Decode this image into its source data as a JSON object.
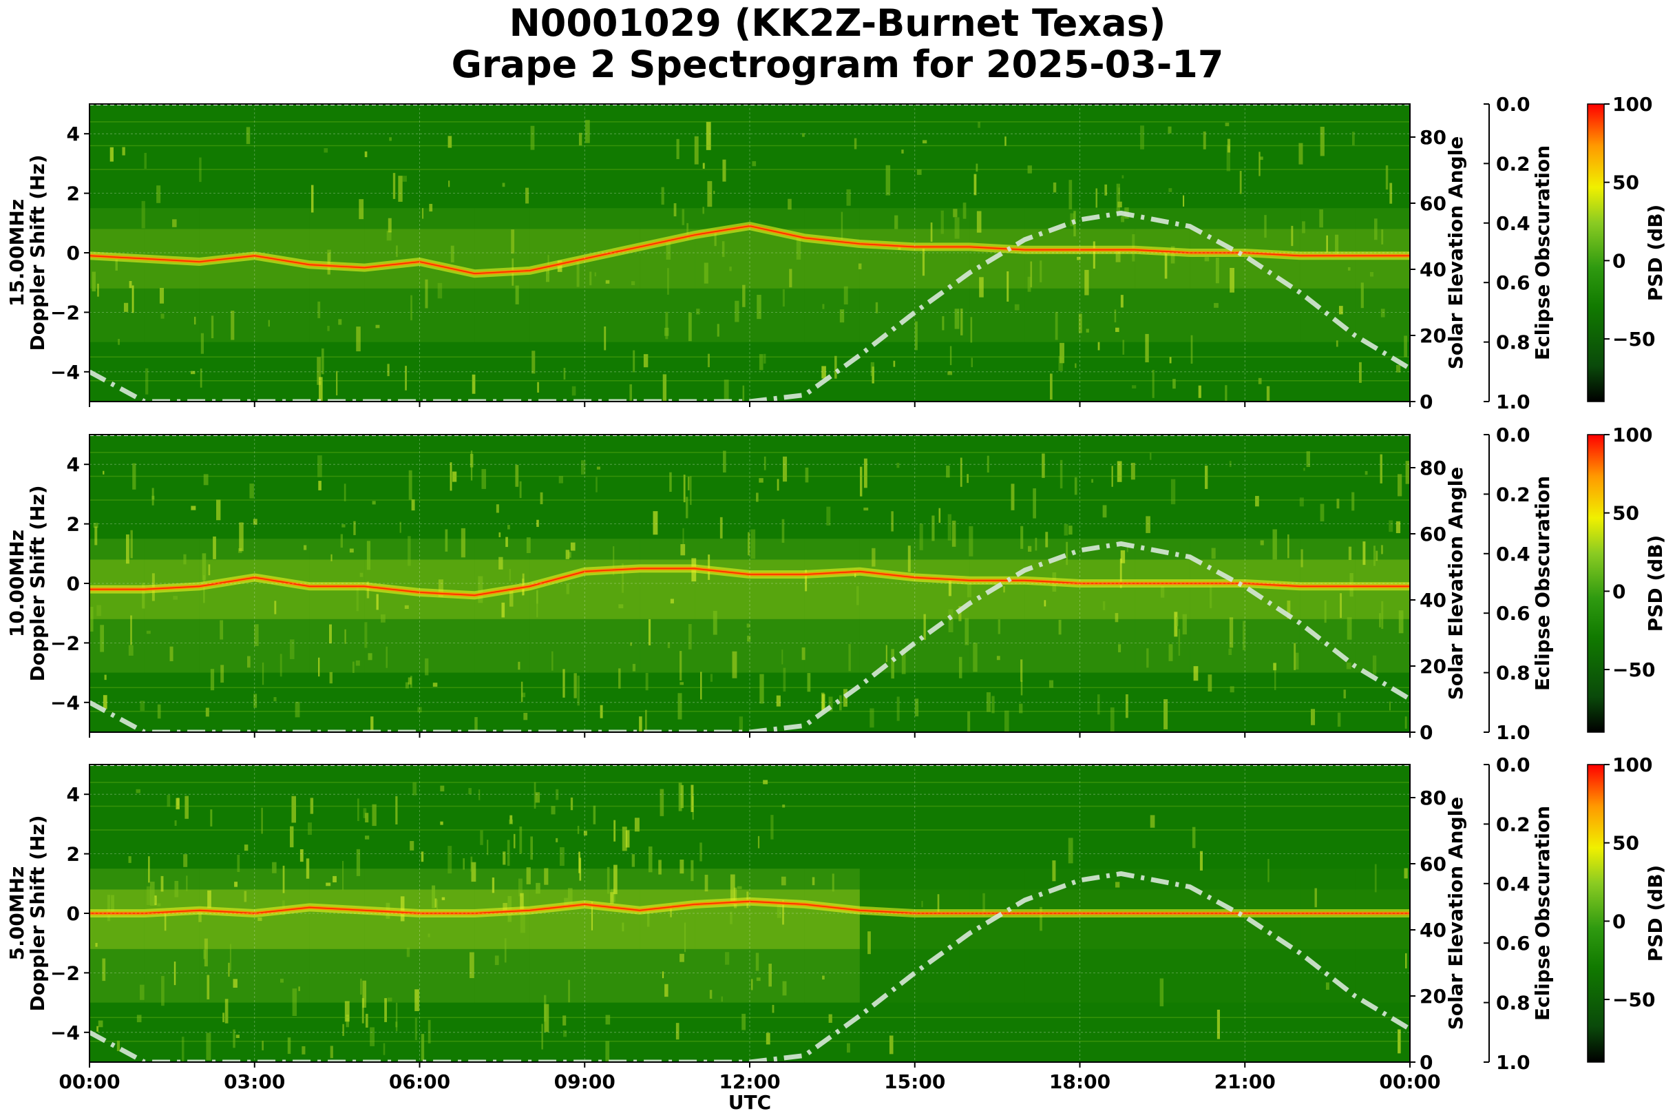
{
  "figure": {
    "title_line1": "N0001029 (KK2Z-Burnet Texas)",
    "title_line2": "Grape 2 Spectrogram for 2025-03-17"
  },
  "axes": {
    "x_label": "UTC",
    "x_ticks": [
      "00:00",
      "03:00",
      "06:00",
      "09:00",
      "12:00",
      "15:00",
      "18:00",
      "21:00",
      "00:00"
    ],
    "y_label": "Doppler Shift (Hz)",
    "y_ticks": [
      "4",
      "2",
      "0",
      "−2",
      "−4"
    ],
    "y_range": [
      -5,
      5
    ],
    "elev_label": "Solar Elevation Angle",
    "elev_ticks": [
      "0",
      "20",
      "40",
      "60",
      "80"
    ],
    "elev_range": [
      0,
      90
    ],
    "eclipse_label": "Eclipse Obscuration",
    "eclipse_ticks": [
      "0.0",
      "0.2",
      "0.4",
      "0.6",
      "0.8",
      "1.0"
    ],
    "psd_label": "PSD (dB)",
    "psd_ticks": [
      "100",
      "50",
      "0",
      "−50"
    ],
    "psd_range": [
      -90,
      100
    ]
  },
  "colors": {
    "background_green": "#117a00",
    "signal_yellow": "#e6f020",
    "signal_orange": "#ff8800",
    "signal_red": "#ff2200",
    "elevation_curve": "#d8e8d8",
    "colorbar": [
      "#000000",
      "#0a5a0a",
      "#117a00",
      "#44aa11",
      "#aad622",
      "#ffee00",
      "#ff8800",
      "#ff0000"
    ]
  },
  "chart_data": {
    "type": "heatmap",
    "panels": [
      {
        "frequency_label": "15.00MHz",
        "doppler_trace_hz": {
          "x": [
            "00:00",
            "01:00",
            "02:00",
            "03:00",
            "04:00",
            "05:00",
            "06:00",
            "07:00",
            "08:00",
            "09:00",
            "10:00",
            "11:00",
            "12:00",
            "13:00",
            "14:00",
            "15:00",
            "16:00",
            "17:00",
            "18:00",
            "19:00",
            "20:00",
            "21:00",
            "22:00",
            "23:00",
            "00:00"
          ],
          "y": [
            -0.1,
            -0.2,
            -0.3,
            -0.1,
            -0.4,
            -0.5,
            -0.3,
            -0.7,
            -0.6,
            -0.2,
            0.2,
            0.6,
            0.9,
            0.5,
            0.3,
            0.2,
            0.2,
            0.1,
            0.1,
            0.1,
            0.0,
            0.0,
            -0.1,
            -0.1,
            -0.1
          ]
        },
        "solar_elevation_deg": {
          "x": [
            "00:00",
            "01:00",
            "02:00",
            "03:00",
            "04:00",
            "05:00",
            "06:00",
            "07:00",
            "08:00",
            "09:00",
            "10:00",
            "11:00",
            "12:00",
            "13:00",
            "14:00",
            "15:00",
            "16:00",
            "17:00",
            "18:00",
            "18:45",
            "20:00",
            "21:00",
            "22:00",
            "23:00",
            "00:00"
          ],
          "y": [
            9,
            0,
            0,
            0,
            0,
            0,
            0,
            0,
            0,
            0,
            0,
            0,
            0,
            2,
            14,
            27,
            39,
            49,
            55,
            57,
            53,
            44,
            33,
            20,
            10
          ]
        },
        "activity_level": 0.55
      },
      {
        "frequency_label": "10.00MHz",
        "doppler_trace_hz": {
          "x": [
            "00:00",
            "01:00",
            "02:00",
            "03:00",
            "04:00",
            "05:00",
            "06:00",
            "07:00",
            "08:00",
            "09:00",
            "10:00",
            "11:00",
            "12:00",
            "13:00",
            "14:00",
            "15:00",
            "16:00",
            "17:00",
            "18:00",
            "19:00",
            "20:00",
            "21:00",
            "22:00",
            "23:00",
            "00:00"
          ],
          "y": [
            -0.2,
            -0.2,
            -0.1,
            0.2,
            -0.1,
            -0.1,
            -0.3,
            -0.4,
            -0.1,
            0.4,
            0.5,
            0.5,
            0.3,
            0.3,
            0.4,
            0.2,
            0.1,
            0.1,
            0.0,
            0.0,
            0.0,
            0.0,
            -0.1,
            -0.1,
            -0.1
          ]
        },
        "solar_elevation_deg": {
          "x": [
            "00:00",
            "01:00",
            "02:00",
            "03:00",
            "04:00",
            "05:00",
            "06:00",
            "07:00",
            "08:00",
            "09:00",
            "10:00",
            "11:00",
            "12:00",
            "13:00",
            "14:00",
            "15:00",
            "16:00",
            "17:00",
            "18:00",
            "18:45",
            "20:00",
            "21:00",
            "22:00",
            "23:00",
            "00:00"
          ],
          "y": [
            9,
            0,
            0,
            0,
            0,
            0,
            0,
            0,
            0,
            0,
            0,
            0,
            0,
            2,
            14,
            27,
            39,
            49,
            55,
            57,
            53,
            44,
            33,
            20,
            10
          ]
        },
        "activity_level": 0.8
      },
      {
        "frequency_label": "5.00MHz",
        "doppler_trace_hz": {
          "x": [
            "00:00",
            "01:00",
            "02:00",
            "03:00",
            "04:00",
            "05:00",
            "06:00",
            "07:00",
            "08:00",
            "09:00",
            "10:00",
            "11:00",
            "12:00",
            "13:00",
            "14:00",
            "15:00",
            "16:00",
            "17:00",
            "18:00",
            "19:00",
            "20:00",
            "21:00",
            "22:00",
            "23:00",
            "00:00"
          ],
          "y": [
            0.0,
            0.0,
            0.1,
            0.0,
            0.2,
            0.1,
            0.0,
            0.0,
            0.1,
            0.3,
            0.1,
            0.3,
            0.4,
            0.3,
            0.1,
            0.0,
            0.0,
            0.0,
            0.0,
            0.0,
            0.0,
            0.0,
            0.0,
            0.0,
            0.0
          ]
        },
        "solar_elevation_deg": {
          "x": [
            "00:00",
            "01:00",
            "02:00",
            "03:00",
            "04:00",
            "05:00",
            "06:00",
            "07:00",
            "08:00",
            "09:00",
            "10:00",
            "11:00",
            "12:00",
            "13:00",
            "14:00",
            "15:00",
            "16:00",
            "17:00",
            "18:00",
            "18:45",
            "20:00",
            "21:00",
            "22:00",
            "23:00",
            "00:00"
          ],
          "y": [
            9,
            0,
            0,
            0,
            0,
            0,
            0,
            0,
            0,
            0,
            0,
            0,
            0,
            2,
            14,
            27,
            39,
            49,
            55,
            57,
            53,
            44,
            33,
            20,
            10
          ]
        },
        "activity_level": 0.9,
        "daytime_quiet_after": "13:30"
      }
    ]
  }
}
